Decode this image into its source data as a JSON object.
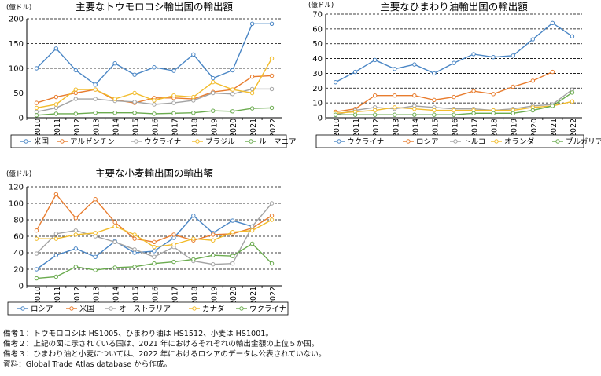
{
  "colors": {
    "grid": "#000000",
    "axis": "#000000"
  },
  "chart_data": [
    {
      "type": "line",
      "title": "主要なトウモロコシ輸出国の輸出額",
      "ylabel": "(億ドル)",
      "ylim": [
        0,
        200
      ],
      "yticks": [
        0,
        50,
        100,
        150,
        200
      ],
      "grid": true,
      "legend_placement": "bottom",
      "x": [
        "2010",
        "2011",
        "2012",
        "2013",
        "2014",
        "2015",
        "2016",
        "2017",
        "2018",
        "2019",
        "2020",
        "2021",
        "2022"
      ],
      "series": [
        {
          "name": "米国",
          "color": "#4a86c5",
          "values": [
            100,
            140,
            96,
            67,
            110,
            87,
            102,
            95,
            128,
            80,
            96,
            190,
            190
          ]
        },
        {
          "name": "アルゼンチン",
          "color": "#e87c2e",
          "values": [
            30,
            42,
            50,
            57,
            36,
            30,
            40,
            40,
            38,
            52,
            57,
            83,
            85
          ]
        },
        {
          "name": "ウクライナ",
          "color": "#a3a3a3",
          "values": [
            12,
            20,
            38,
            38,
            34,
            32,
            27,
            30,
            35,
            50,
            48,
            58,
            58
          ]
        },
        {
          "name": "ブラジル",
          "color": "#f2bc2c",
          "values": [
            20,
            27,
            57,
            57,
            38,
            50,
            35,
            45,
            42,
            72,
            57,
            50,
            120
          ]
        },
        {
          "name": "ルーマニア",
          "color": "#6aab4e",
          "values": [
            5,
            8,
            8,
            10,
            10,
            10,
            8,
            9,
            10,
            14,
            13,
            19,
            20
          ]
        }
      ]
    },
    {
      "type": "line",
      "title": "主要なひまわり油輸出国の輸出額",
      "ylabel": "(億ドル)",
      "ylim": [
        0,
        70
      ],
      "yticks": [
        0,
        10,
        20,
        30,
        40,
        50,
        60,
        70
      ],
      "grid": true,
      "legend_placement": "bottom",
      "x": [
        "2010",
        "2011",
        "2012",
        "2013",
        "2014",
        "2015",
        "2016",
        "2017",
        "2018",
        "2019",
        "2020",
        "2021",
        "2022"
      ],
      "series": [
        {
          "name": "ウクライナ",
          "color": "#4a86c5",
          "values": [
            24,
            31,
            39,
            33,
            36,
            30,
            37,
            43,
            41,
            42,
            53,
            64,
            55
          ]
        },
        {
          "name": "ロシア",
          "color": "#e87c2e",
          "values": [
            4,
            6,
            15,
            15,
            15,
            12,
            14,
            18,
            16,
            21,
            25,
            31,
            null
          ]
        },
        {
          "name": "トルコ",
          "color": "#a3a3a3",
          "values": [
            2,
            5,
            7,
            6,
            8,
            7,
            6,
            6,
            5,
            6,
            8,
            9,
            19
          ]
        },
        {
          "name": "オランダ",
          "color": "#f2bc2c",
          "values": [
            3,
            4,
            5,
            7,
            6,
            5,
            5,
            5,
            5,
            5,
            7,
            8,
            11
          ]
        },
        {
          "name": "ブルガリア",
          "color": "#6aab4e",
          "values": [
            2,
            2,
            2,
            2,
            2,
            2,
            2,
            3,
            3,
            3,
            5,
            8,
            17
          ]
        }
      ]
    },
    {
      "type": "line",
      "title": "主要な小麦輸出国の輸出額",
      "ylabel": "(億ドル)",
      "ylim": [
        0,
        120
      ],
      "yticks": [
        0,
        20,
        40,
        60,
        80,
        100,
        120
      ],
      "grid": true,
      "legend_placement": "bottom",
      "x": [
        "2010",
        "2011",
        "2012",
        "2013",
        "2014",
        "2015",
        "2016",
        "2017",
        "2018",
        "2019",
        "2020",
        "2021",
        "2022"
      ],
      "series": [
        {
          "name": "ロシア",
          "color": "#4a86c5",
          "values": [
            20,
            37,
            45,
            35,
            54,
            40,
            42,
            58,
            85,
            64,
            79,
            72,
            null
          ]
        },
        {
          "name": "米国",
          "color": "#e87c2e",
          "values": [
            67,
            111,
            82,
            105,
            77,
            57,
            53,
            62,
            55,
            62,
            63,
            70,
            85
          ]
        },
        {
          "name": "オーストラリア",
          "color": "#a3a3a3",
          "values": [
            39,
            63,
            67,
            60,
            53,
            44,
            35,
            47,
            30,
            26,
            27,
            72,
            100
          ]
        },
        {
          "name": "カナダ",
          "color": "#f2bc2c",
          "values": [
            57,
            57,
            62,
            64,
            72,
            62,
            47,
            50,
            57,
            55,
            65,
            67,
            80
          ]
        },
        {
          "name": "ウクライナ",
          "color": "#6aab4e",
          "values": [
            9,
            11,
            23,
            19,
            22,
            23,
            27,
            29,
            32,
            37,
            36,
            51,
            27
          ]
        }
      ]
    }
  ],
  "notes": [
    "備考１：トウモロコシは HS1005、ひまわり油は HS1512、小麦は HS1001。",
    "備考２：上記の図に示されている国は、2021 年におけるそれぞれの輸出金額の上位５か国。",
    "備考３：ひまわり油と小麦については、2022 年におけるロシアのデータは公表されていない。",
    "資料：Global Trade Atlas database から作成。"
  ]
}
